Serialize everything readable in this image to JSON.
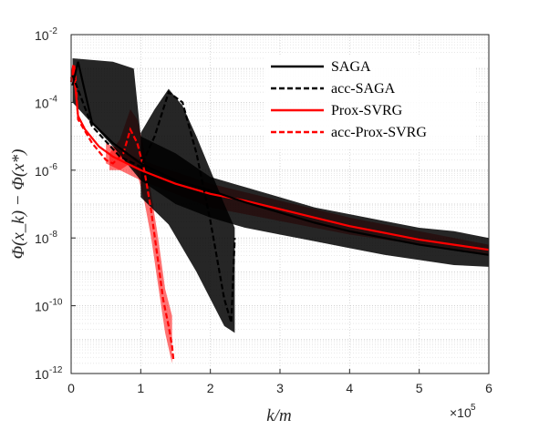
{
  "chart_data": {
    "type": "line",
    "xlabel": "k/m",
    "ylabel": "Φ(x_k) − Φ(x*)",
    "x_exponent_label": "×10",
    "x_exponent": "5",
    "xlim": [
      0,
      6
    ],
    "ylim_log10": [
      -12,
      -2
    ],
    "yscale": "log",
    "x_ticks": [
      0,
      1,
      2,
      3,
      4,
      5,
      6
    ],
    "y_ticks": [
      {
        "base": "10",
        "exp": "-12",
        "v": -12
      },
      {
        "base": "10",
        "exp": "-10",
        "v": -10
      },
      {
        "base": "10",
        "exp": "-8",
        "v": -8
      },
      {
        "base": "10",
        "exp": "-6",
        "v": -6
      },
      {
        "base": "10",
        "exp": "-4",
        "v": -4
      },
      {
        "base": "10",
        "exp": "-2",
        "v": -2
      }
    ],
    "grid": true,
    "legend_position": "top-right",
    "series": [
      {
        "name": "SAGA",
        "color": "#000000",
        "dash": "solid",
        "points": [
          [
            0.02,
            -3.5
          ],
          [
            0.1,
            -2.8
          ],
          [
            0.3,
            -4.6
          ],
          [
            0.6,
            -5.2
          ],
          [
            1.0,
            -5.8
          ],
          [
            1.5,
            -6.3
          ],
          [
            2.0,
            -6.6
          ],
          [
            2.5,
            -6.95
          ],
          [
            3.0,
            -7.25
          ],
          [
            3.5,
            -7.55
          ],
          [
            4.0,
            -7.8
          ],
          [
            4.5,
            -8.0
          ],
          [
            5.0,
            -8.2
          ],
          [
            5.5,
            -8.35
          ],
          [
            6.0,
            -8.5
          ]
        ],
        "band_high": [
          [
            0.02,
            -2.7
          ],
          [
            0.6,
            -2.8
          ],
          [
            0.9,
            -3.0
          ],
          [
            1.0,
            -5.0
          ],
          [
            1.5,
            -5.5
          ],
          [
            2.0,
            -6.2
          ],
          [
            2.5,
            -6.5
          ],
          [
            3.0,
            -6.8
          ],
          [
            3.5,
            -7.1
          ],
          [
            4.0,
            -7.3
          ],
          [
            4.5,
            -7.5
          ],
          [
            5.0,
            -7.7
          ],
          [
            5.5,
            -7.8
          ],
          [
            6.0,
            -8.0
          ]
        ],
        "band_low": [
          [
            0.02,
            -4.0
          ],
          [
            0.6,
            -5.3
          ],
          [
            1.0,
            -6.3
          ],
          [
            1.5,
            -7.0
          ],
          [
            2.0,
            -7.4
          ],
          [
            2.5,
            -7.7
          ],
          [
            3.0,
            -7.9
          ],
          [
            3.5,
            -8.1
          ],
          [
            4.0,
            -8.3
          ],
          [
            4.5,
            -8.5
          ],
          [
            5.0,
            -8.65
          ],
          [
            5.5,
            -8.8
          ],
          [
            6.0,
            -8.85
          ]
        ]
      },
      {
        "name": "acc-SAGA",
        "color": "#000000",
        "dash": "dashed",
        "points": [
          [
            0.02,
            -3.2
          ],
          [
            0.3,
            -4.7
          ],
          [
            0.7,
            -5.6
          ],
          [
            1.0,
            -5.9
          ],
          [
            1.2,
            -5.0
          ],
          [
            1.4,
            -3.7
          ],
          [
            1.6,
            -4.0
          ],
          [
            1.8,
            -5.5
          ],
          [
            2.0,
            -7.5
          ],
          [
            2.2,
            -9.8
          ],
          [
            2.3,
            -10.5
          ],
          [
            2.35,
            -8.0
          ]
        ],
        "band_high": [
          [
            1.0,
            -4.9
          ],
          [
            1.2,
            -4.2
          ],
          [
            1.4,
            -3.6
          ],
          [
            1.6,
            -4.1
          ],
          [
            1.8,
            -5.0
          ],
          [
            2.0,
            -6.0
          ],
          [
            2.2,
            -7.0
          ],
          [
            2.35,
            -7.7
          ]
        ],
        "band_low": [
          [
            1.0,
            -6.8
          ],
          [
            1.2,
            -7.2
          ],
          [
            1.4,
            -7.6
          ],
          [
            1.6,
            -8.3
          ],
          [
            1.8,
            -9.0
          ],
          [
            2.0,
            -9.8
          ],
          [
            2.2,
            -10.6
          ],
          [
            2.35,
            -10.8
          ]
        ]
      },
      {
        "name": "Prox-SVRG",
        "color": "#ff0000",
        "dash": "solid",
        "points": [
          [
            0.0,
            -3.4
          ],
          [
            0.03,
            -2.9
          ],
          [
            0.1,
            -4.4
          ],
          [
            0.2,
            -4.8
          ],
          [
            0.4,
            -5.3
          ],
          [
            0.6,
            -5.6
          ],
          [
            1.0,
            -6.0
          ],
          [
            1.5,
            -6.4
          ],
          [
            2.0,
            -6.7
          ],
          [
            2.5,
            -6.9
          ],
          [
            3.0,
            -7.15
          ],
          [
            3.5,
            -7.4
          ],
          [
            4.0,
            -7.65
          ],
          [
            4.5,
            -7.85
          ],
          [
            5.0,
            -8.05
          ],
          [
            5.5,
            -8.2
          ],
          [
            6.0,
            -8.35
          ]
        ],
        "band_high": [
          [
            0.5,
            -5.2
          ],
          [
            1.0,
            -5.7
          ],
          [
            2.0,
            -6.4
          ],
          [
            3.0,
            -6.9
          ],
          [
            4.0,
            -7.4
          ],
          [
            5.0,
            -7.8
          ],
          [
            6.0,
            -8.2
          ]
        ],
        "band_low": [
          [
            0.5,
            -5.8
          ],
          [
            1.0,
            -6.3
          ],
          [
            2.0,
            -7.1
          ],
          [
            3.0,
            -7.5
          ],
          [
            4.0,
            -7.9
          ],
          [
            5.0,
            -8.2
          ],
          [
            6.0,
            -8.5
          ]
        ]
      },
      {
        "name": "acc-Prox-SVRG",
        "color": "#ff0000",
        "dash": "dashed",
        "points": [
          [
            0.0,
            -3.3
          ],
          [
            0.05,
            -2.9
          ],
          [
            0.1,
            -4.5
          ],
          [
            0.3,
            -5.2
          ],
          [
            0.5,
            -5.7
          ],
          [
            0.6,
            -5.8
          ],
          [
            0.75,
            -5.5
          ],
          [
            0.85,
            -4.8
          ],
          [
            0.95,
            -5.2
          ],
          [
            1.05,
            -6.0
          ],
          [
            1.15,
            -7.2
          ],
          [
            1.25,
            -8.7
          ],
          [
            1.32,
            -9.8
          ],
          [
            1.4,
            -10.6
          ],
          [
            1.45,
            -11.2
          ],
          [
            1.47,
            -11.6
          ]
        ],
        "band_high": [
          [
            0.55,
            -5.5
          ],
          [
            0.7,
            -5.1
          ],
          [
            0.85,
            -4.2
          ],
          [
            0.95,
            -4.5
          ],
          [
            1.05,
            -5.4
          ],
          [
            1.15,
            -6.7
          ],
          [
            1.25,
            -8.0
          ],
          [
            1.35,
            -9.5
          ],
          [
            1.45,
            -10.3
          ]
        ],
        "band_low": [
          [
            0.55,
            -6.0
          ],
          [
            0.7,
            -6.0
          ],
          [
            0.85,
            -5.8
          ],
          [
            0.95,
            -6.1
          ],
          [
            1.05,
            -6.9
          ],
          [
            1.15,
            -8.0
          ],
          [
            1.25,
            -9.4
          ],
          [
            1.35,
            -10.8
          ],
          [
            1.45,
            -11.7
          ]
        ]
      }
    ]
  }
}
